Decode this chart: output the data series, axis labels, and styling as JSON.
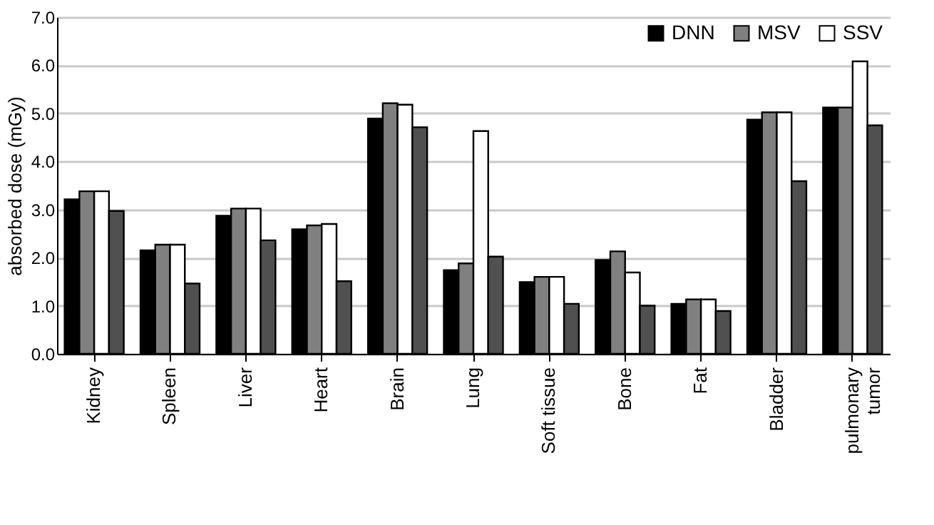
{
  "chart_data": {
    "type": "bar",
    "ylabel": "absorbed dose (mGy)",
    "categories": [
      "Kidney",
      "Spleen",
      "Liver",
      "Heart",
      "Brain",
      "Lung",
      "Soft tissue",
      "Bone",
      "Fat",
      "Bladder",
      "pulmonary tumor"
    ],
    "series": [
      {
        "name": "DNN",
        "color": "#000000",
        "values": [
          3.21,
          2.15,
          2.87,
          2.59,
          4.89,
          1.74,
          1.49,
          1.95,
          1.04,
          4.87,
          5.12
        ]
      },
      {
        "name": "MSV",
        "color": "#808080",
        "values": [
          3.38,
          2.27,
          3.02,
          2.67,
          5.21,
          1.88,
          1.6,
          2.13,
          1.13,
          5.02,
          5.12
        ]
      },
      {
        "name": "SSV",
        "color": "#ffffff",
        "values": [
          3.38,
          2.27,
          3.02,
          2.7,
          5.18,
          4.63,
          1.6,
          1.69,
          1.13,
          5.02,
          6.08
        ]
      },
      {
        "color": "#505050",
        "values": [
          2.97,
          1.46,
          2.36,
          1.51,
          4.71,
          2.02,
          1.04,
          1.0,
          0.89,
          3.59,
          4.75
        ]
      }
    ],
    "ylim": [
      0,
      7
    ],
    "yticks": [
      {
        "value": 0,
        "label": "0.0"
      },
      {
        "value": 1,
        "label": "1.0"
      },
      {
        "value": 2,
        "label": "2.0"
      },
      {
        "value": 3,
        "label": "3.0"
      },
      {
        "value": 4,
        "label": "4.0"
      },
      {
        "value": 5,
        "label": "5.0"
      },
      {
        "value": 6,
        "label": "6.0"
      },
      {
        "value": 7,
        "label": "7.0"
      }
    ],
    "grid": "y",
    "legend": "top right"
  }
}
